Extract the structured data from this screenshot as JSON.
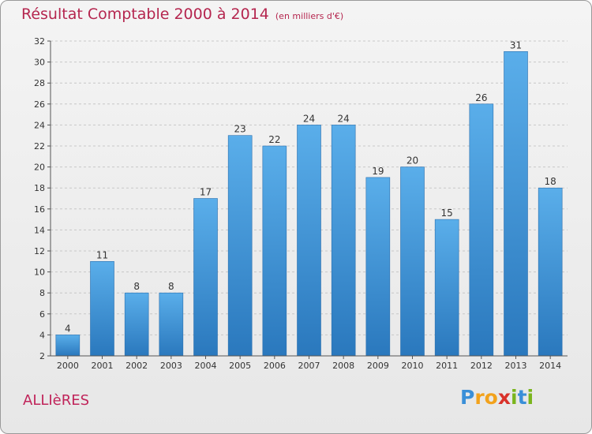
{
  "chart_data": {
    "type": "bar",
    "title": "Résultat Comptable 2000 à 2014",
    "subtitle": "(en milliers d'€)",
    "categories": [
      "2000",
      "2001",
      "2002",
      "2003",
      "2004",
      "2005",
      "2006",
      "2007",
      "2008",
      "2009",
      "2010",
      "2011",
      "2012",
      "2013",
      "2014"
    ],
    "values": [
      4,
      11,
      8,
      8,
      17,
      23,
      22,
      24,
      24,
      19,
      20,
      15,
      26,
      31,
      18
    ],
    "ylim": [
      2,
      32
    ],
    "yticks": [
      2,
      4,
      6,
      8,
      10,
      12,
      14,
      16,
      18,
      20,
      22,
      24,
      26,
      28,
      30,
      32
    ],
    "grid": true,
    "bar_color": "#3d92d6",
    "xlabel": "",
    "ylabel": ""
  },
  "commune": "ALLIèRES",
  "logo": {
    "letters": [
      "P",
      "r",
      "o",
      "x",
      "i",
      "t",
      "i"
    ],
    "colors": [
      "#3a8fd8",
      "#f2a21c",
      "#f2a21c",
      "#d9322a",
      "#7ab51d",
      "#3a8fd8",
      "#7ab51d"
    ]
  },
  "colors": {
    "title": "#b5264f",
    "axis": "#555555",
    "grid": "#c8c8c8"
  }
}
